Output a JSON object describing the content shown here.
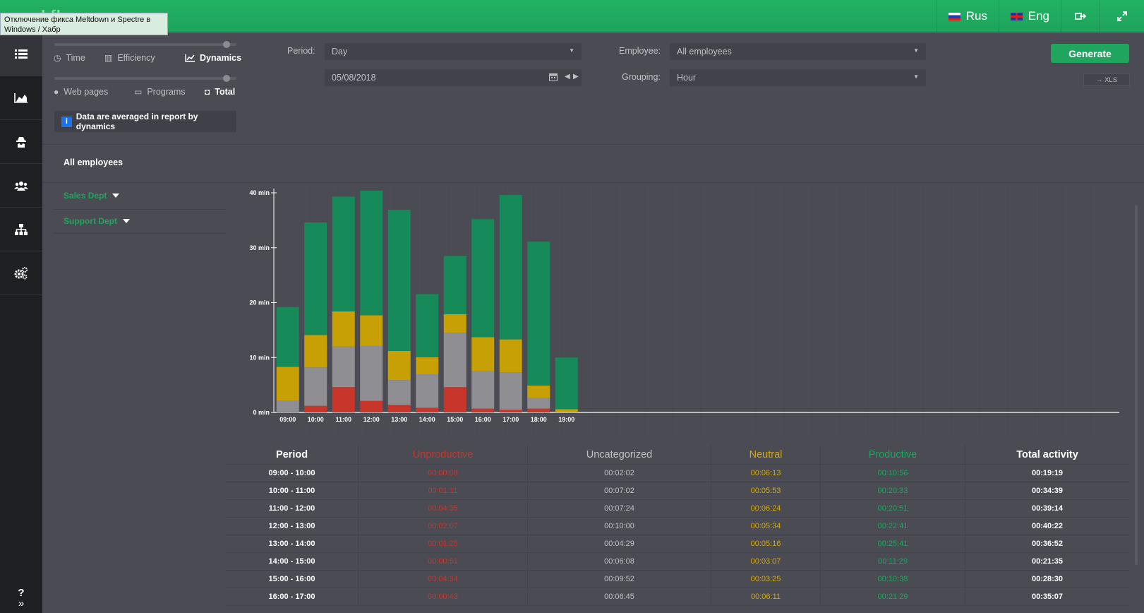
{
  "topbar": {
    "logo": "workflow",
    "tooltip": "Отключение фикса Meltdown и Spectre в Windows / Хабр",
    "lang_ru": "Rus",
    "lang_en": "Eng",
    "logout_icon": "logout-icon",
    "fullscreen_icon": "fullscreen-icon"
  },
  "sidebar": {
    "items": [
      {
        "icon": "list-icon",
        "glyph": "☰"
      },
      {
        "icon": "area-chart-icon",
        "glyph": "▲"
      },
      {
        "icon": "spy-icon",
        "glyph": "☗"
      },
      {
        "icon": "users-icon",
        "glyph": "👥"
      },
      {
        "icon": "org-chart-icon",
        "glyph": "⊥"
      },
      {
        "icon": "gears-icon",
        "glyph": "⚙"
      }
    ],
    "help": "?",
    "expand": "»"
  },
  "modes": {
    "time": "Time",
    "efficiency": "Efficiency",
    "dynamics": "Dynamics",
    "web_pages": "Web pages",
    "programs": "Programs",
    "total": "Total"
  },
  "info": {
    "badge": "i",
    "text": "Data are averaged in report by dynamics"
  },
  "filters": {
    "period_label": "Period:",
    "period_value": "Day",
    "date_value": "05/08/2018",
    "employee_label": "Employee:",
    "employee_value": "All employees",
    "grouping_label": "Grouping:",
    "grouping_value": "Hour",
    "generate": "Generate",
    "xls": "→ XLS"
  },
  "employees": {
    "title": "All employees",
    "depts": [
      "Sales Dept",
      "Support Dept"
    ]
  },
  "colors": {
    "unproductive": "#c8362b",
    "uncategorized": "#8e8e93",
    "neutral": "#c7a006",
    "productive": "#178a59"
  },
  "chart_data": {
    "type": "bar",
    "stacked": true,
    "categories": [
      "09:00",
      "10:00",
      "11:00",
      "12:00",
      "13:00",
      "14:00",
      "15:00",
      "16:00",
      "17:00",
      "18:00",
      "19:00"
    ],
    "y_ticks": [
      "0 min",
      "10 min",
      "20 min",
      "30 min",
      "40 min"
    ],
    "ylim": [
      0,
      40
    ],
    "series": [
      {
        "name": "Unproductive",
        "values": [
          0.1,
          1.2,
          4.6,
          2.1,
          1.4,
          0.85,
          4.6,
          0.7,
          0.5,
          0.7,
          0
        ]
      },
      {
        "name": "Uncategorized",
        "values": [
          2.0,
          7.0,
          7.4,
          10.0,
          4.5,
          6.1,
          9.9,
          6.8,
          6.8,
          2.0,
          0
        ]
      },
      {
        "name": "Neutral",
        "values": [
          6.2,
          5.9,
          6.4,
          5.6,
          5.3,
          3.1,
          3.4,
          6.2,
          6.0,
          2.2,
          0.6
        ]
      },
      {
        "name": "Productive",
        "values": [
          10.9,
          20.5,
          20.9,
          22.7,
          25.7,
          11.5,
          10.6,
          21.5,
          26.3,
          26.2,
          9.4
        ]
      }
    ],
    "empty_slots": 18,
    "grid": true
  },
  "table": {
    "headers": [
      "Period",
      "Unproductive",
      "Uncategorized",
      "Neutral",
      "Productive",
      "Total activity"
    ],
    "rows": [
      [
        "09:00 - 10:00",
        "00:00:08",
        "00:02:02",
        "00:06:13",
        "00:10:56",
        "00:19:19"
      ],
      [
        "10:00 - 11:00",
        "00:01:11",
        "00:07:02",
        "00:05:53",
        "00:20:33",
        "00:34:39"
      ],
      [
        "11:00 - 12:00",
        "00:04:35",
        "00:07:24",
        "00:06:24",
        "00:20:51",
        "00:39:14"
      ],
      [
        "12:00 - 13:00",
        "00:02:07",
        "00:10:00",
        "00:05:34",
        "00:22:41",
        "00:40:22"
      ],
      [
        "13:00 - 14:00",
        "00:01:25",
        "00:04:29",
        "00:05:16",
        "00:25:41",
        "00:36:52"
      ],
      [
        "14:00 - 15:00",
        "00:00:51",
        "00:06:08",
        "00:03:07",
        "00:11:29",
        "00:21:35"
      ],
      [
        "15:00 - 16:00",
        "00:04:34",
        "00:09:52",
        "00:03:25",
        "00:10:38",
        "00:28:30"
      ],
      [
        "16:00 - 17:00",
        "00:00:43",
        "00:06:45",
        "00:06:11",
        "00:21:29",
        "00:35:07"
      ]
    ]
  }
}
